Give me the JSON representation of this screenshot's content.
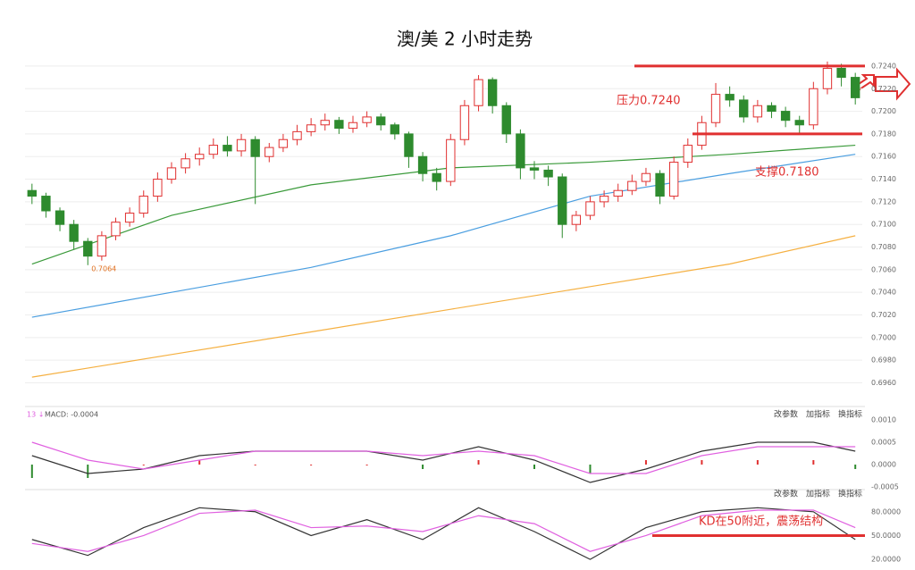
{
  "chart_data": {
    "type": "candlestick",
    "title": "澳/美 2 小时走势",
    "up_color": "#e03030",
    "down_color": "#2e8b2e",
    "ylim": [
      0.6943,
      0.7251
    ],
    "yticks": [
      {
        "value": 0.696,
        "label": "0.6960"
      },
      {
        "value": 0.698,
        "label": "0.6980"
      },
      {
        "value": 0.7,
        "label": "0.7000"
      },
      {
        "value": 0.702,
        "label": "0.7020"
      },
      {
        "value": 0.704,
        "label": "0.7040"
      },
      {
        "value": 0.706,
        "label": "0.7060"
      },
      {
        "value": 0.708,
        "label": "0.7080"
      },
      {
        "value": 0.71,
        "label": "0.7100"
      },
      {
        "value": 0.712,
        "label": "0.7120"
      },
      {
        "value": 0.714,
        "label": "0.7140"
      },
      {
        "value": 0.716,
        "label": "0.7160"
      },
      {
        "value": 0.718,
        "label": "0.7180"
      },
      {
        "value": 0.72,
        "label": "0.7200"
      },
      {
        "value": 0.722,
        "label": "0.7220"
      },
      {
        "value": 0.724,
        "label": "0.7240"
      }
    ],
    "grid": true,
    "ohlc": [
      [
        0.713,
        0.7136,
        0.7118,
        0.7125
      ],
      [
        0.7125,
        0.7128,
        0.7106,
        0.7112
      ],
      [
        0.7112,
        0.7115,
        0.7094,
        0.71
      ],
      [
        0.71,
        0.7104,
        0.7078,
        0.7085
      ],
      [
        0.7085,
        0.7088,
        0.7064,
        0.7072
      ],
      [
        0.7072,
        0.7094,
        0.7068,
        0.709
      ],
      [
        0.709,
        0.7106,
        0.7086,
        0.7102
      ],
      [
        0.7102,
        0.7115,
        0.7098,
        0.711
      ],
      [
        0.711,
        0.713,
        0.7106,
        0.7125
      ],
      [
        0.7125,
        0.7146,
        0.712,
        0.714
      ],
      [
        0.714,
        0.7155,
        0.7136,
        0.715
      ],
      [
        0.715,
        0.7163,
        0.7145,
        0.7158
      ],
      [
        0.7158,
        0.7168,
        0.7152,
        0.7162
      ],
      [
        0.7162,
        0.7176,
        0.7158,
        0.717
      ],
      [
        0.717,
        0.7178,
        0.716,
        0.7165
      ],
      [
        0.7165,
        0.718,
        0.716,
        0.7175
      ],
      [
        0.7175,
        0.7178,
        0.7118,
        0.716
      ],
      [
        0.716,
        0.7172,
        0.7155,
        0.7168
      ],
      [
        0.7168,
        0.718,
        0.7164,
        0.7175
      ],
      [
        0.7175,
        0.7188,
        0.717,
        0.7182
      ],
      [
        0.7182,
        0.7194,
        0.7178,
        0.7188
      ],
      [
        0.7188,
        0.7198,
        0.7183,
        0.7192
      ],
      [
        0.7192,
        0.7195,
        0.718,
        0.7185
      ],
      [
        0.7185,
        0.7196,
        0.7181,
        0.719
      ],
      [
        0.719,
        0.72,
        0.7186,
        0.7195
      ],
      [
        0.7195,
        0.7198,
        0.7183,
        0.7188
      ],
      [
        0.7188,
        0.719,
        0.7175,
        0.718
      ],
      [
        0.718,
        0.7182,
        0.715,
        0.716
      ],
      [
        0.716,
        0.7164,
        0.7138,
        0.7145
      ],
      [
        0.7145,
        0.715,
        0.713,
        0.7138
      ],
      [
        0.7138,
        0.718,
        0.7134,
        0.7175
      ],
      [
        0.7175,
        0.721,
        0.717,
        0.7205
      ],
      [
        0.7205,
        0.7232,
        0.72,
        0.7228
      ],
      [
        0.7228,
        0.723,
        0.7198,
        0.7205
      ],
      [
        0.7205,
        0.7208,
        0.7172,
        0.718
      ],
      [
        0.718,
        0.7184,
        0.714,
        0.715
      ],
      [
        0.715,
        0.7156,
        0.714,
        0.7148
      ],
      [
        0.7148,
        0.7152,
        0.7134,
        0.7142
      ],
      [
        0.7142,
        0.7145,
        0.7088,
        0.71
      ],
      [
        0.71,
        0.7112,
        0.7094,
        0.7108
      ],
      [
        0.7108,
        0.7125,
        0.7104,
        0.712
      ],
      [
        0.712,
        0.713,
        0.7115,
        0.7125
      ],
      [
        0.7125,
        0.7136,
        0.712,
        0.713
      ],
      [
        0.713,
        0.7144,
        0.7126,
        0.7138
      ],
      [
        0.7138,
        0.715,
        0.7134,
        0.7145
      ],
      [
        0.7145,
        0.7148,
        0.7118,
        0.7125
      ],
      [
        0.7125,
        0.716,
        0.7122,
        0.7155
      ],
      [
        0.7155,
        0.7176,
        0.715,
        0.717
      ],
      [
        0.717,
        0.7196,
        0.7166,
        0.719
      ],
      [
        0.719,
        0.7225,
        0.7186,
        0.7215
      ],
      [
        0.7215,
        0.7222,
        0.7204,
        0.721
      ],
      [
        0.721,
        0.7214,
        0.719,
        0.7195
      ],
      [
        0.7195,
        0.721,
        0.719,
        0.7205
      ],
      [
        0.7205,
        0.7208,
        0.7194,
        0.72
      ],
      [
        0.72,
        0.7204,
        0.7186,
        0.7192
      ],
      [
        0.7192,
        0.7196,
        0.718,
        0.7188
      ],
      [
        0.7188,
        0.7226,
        0.7184,
        0.722
      ],
      [
        0.722,
        0.7244,
        0.7215,
        0.7238
      ],
      [
        0.7238,
        0.7242,
        0.7222,
        0.723
      ],
      [
        0.723,
        0.7234,
        0.7206,
        0.7212
      ]
    ],
    "low_label": "0.7064",
    "ma_x": [
      0,
      10,
      20,
      30,
      40,
      50,
      59
    ],
    "moving_averages": [
      {
        "color": "#4a9ee0",
        "values": [
          0.7018,
          0.704,
          0.7062,
          0.709,
          0.7125,
          0.7145,
          0.7162
        ]
      },
      {
        "color": "#f5b041",
        "values": [
          0.6965,
          0.6985,
          0.7005,
          0.7025,
          0.7045,
          0.7065,
          0.709
        ]
      },
      {
        "color": "#3a9a3a",
        "values": [
          0.7065,
          0.7108,
          0.7135,
          0.715,
          0.7155,
          0.7162,
          0.717
        ]
      }
    ],
    "annotations": [
      {
        "text": "压力0.7240",
        "value": 0.724
      },
      {
        "text": "支撑0.7180",
        "value": 0.718
      }
    ],
    "buttons": [
      "改参数",
      "加指标",
      "换指标"
    ],
    "macd": {
      "label": "MACD: -0.0004",
      "ylim": [
        -0.0005,
        0.0011
      ],
      "yticks": [
        {
          "value": 0.001,
          "label": "0.0010"
        },
        {
          "value": 0.0005,
          "label": "0.0005"
        },
        {
          "value": 0,
          "label": "0.0000"
        },
        {
          "value": -0.0005,
          "label": "-0.0005"
        }
      ],
      "x": [
        0,
        4,
        8,
        12,
        16,
        20,
        24,
        28,
        32,
        36,
        40,
        44,
        48,
        52,
        56,
        59
      ],
      "hist": [
        -0.0003,
        -0.0003,
        0.0,
        0.0001,
        0.0,
        0.0,
        0.0,
        -0.0001,
        0.0001,
        -0.0001,
        -0.0002,
        0.0001,
        0.0001,
        0.0001,
        0.0001,
        -0.0001
      ],
      "series": [
        {
          "color": "#333333",
          "values": [
            0.0002,
            -0.0002,
            -0.0001,
            0.0002,
            0.0003,
            0.0003,
            0.0003,
            0.0001,
            0.0004,
            0.0001,
            -0.0004,
            -0.0001,
            0.0003,
            0.0005,
            0.0005,
            0.0003
          ]
        },
        {
          "color": "#e060e0",
          "values": [
            0.0005,
            0.0001,
            -0.0001,
            0.0001,
            0.0003,
            0.0003,
            0.0003,
            0.0002,
            0.0003,
            0.0002,
            -0.0002,
            -0.0002,
            0.0002,
            0.0004,
            0.0004,
            0.0004
          ]
        }
      ]
    },
    "kd": {
      "ylim": [
        10,
        100
      ],
      "yticks": [
        {
          "value": 80,
          "label": "80.0000"
        },
        {
          "value": 50,
          "label": "50.0000"
        },
        {
          "value": 20,
          "label": "20.0000"
        }
      ],
      "x": [
        0,
        4,
        8,
        12,
        16,
        20,
        24,
        28,
        32,
        36,
        40,
        44,
        48,
        52,
        56,
        59
      ],
      "series": [
        {
          "color": "#333333",
          "values": [
            45,
            25,
            60,
            85,
            80,
            50,
            70,
            45,
            85,
            55,
            20,
            60,
            80,
            85,
            80,
            45
          ]
        },
        {
          "color": "#e060e0",
          "values": [
            40,
            30,
            50,
            78,
            82,
            60,
            62,
            55,
            75,
            65,
            30,
            50,
            75,
            82,
            82,
            60
          ]
        }
      ],
      "annotation": {
        "text": "KD在50附近，震荡结构",
        "value": 50
      }
    }
  }
}
